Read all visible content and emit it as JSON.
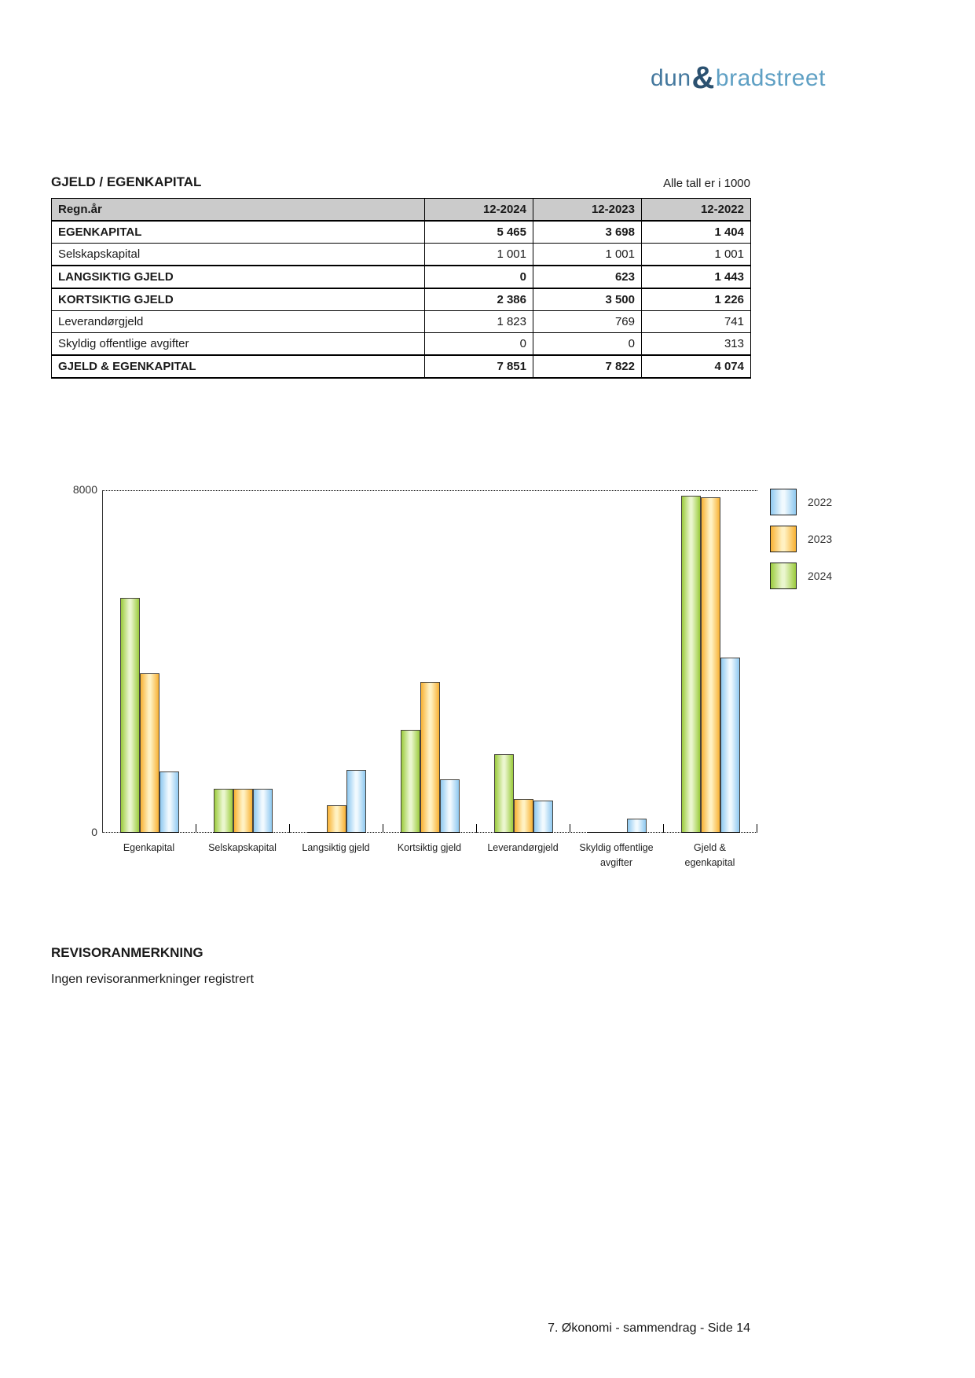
{
  "logo": {
    "part1": "dun",
    "amp": "&",
    "part2": "bradstreet"
  },
  "section": {
    "title": "GJELD / EGENKAPITAL",
    "note": "Alle tall er i 1000"
  },
  "table": {
    "header": [
      "Regn.år",
      "12-2024",
      "12-2023",
      "12-2022"
    ],
    "rows": [
      {
        "label": "EGENKAPITAL",
        "bold": true,
        "values": [
          "5 465",
          "3 698",
          "1 404"
        ]
      },
      {
        "label": "Selskapskapital",
        "bold": false,
        "values": [
          "1 001",
          "1 001",
          "1 001"
        ]
      },
      {
        "label": "LANGSIKTIG GJELD",
        "bold": true,
        "values": [
          "0",
          "623",
          "1 443"
        ]
      },
      {
        "label": "KORTSIKTIG GJELD",
        "bold": true,
        "values": [
          "2 386",
          "3 500",
          "1 226"
        ]
      },
      {
        "label": "Leverandørgjeld",
        "bold": false,
        "values": [
          "1 823",
          "769",
          "741"
        ]
      },
      {
        "label": "Skyldig offentlige avgifter",
        "bold": false,
        "values": [
          "0",
          "0",
          "313"
        ]
      },
      {
        "label": "GJELD & EGENKAPITAL",
        "bold": true,
        "values": [
          "7 851",
          "7 822",
          "4 074"
        ]
      }
    ]
  },
  "chart_data": {
    "type": "bar",
    "categories": [
      "Egenkapital",
      "Selskapskapital",
      "Langsiktig gjeld",
      "Kortsiktig gjeld",
      "Leverandørgjeld",
      "Skyldig offentlige avgifter",
      "Gjeld & egenkapital"
    ],
    "series": [
      {
        "name": "2024",
        "color": "#9BCB3D",
        "light": "#EAF6CE",
        "values": [
          5465,
          1001,
          0,
          2386,
          1823,
          0,
          7851
        ]
      },
      {
        "name": "2023",
        "color": "#F8B133",
        "light": "#FFF1C2",
        "values": [
          3698,
          1001,
          623,
          3500,
          769,
          0,
          7822
        ]
      },
      {
        "name": "2022",
        "color": "#8FC9F0",
        "light": "#F0F9FE",
        "values": [
          1404,
          1001,
          1443,
          1226,
          741,
          313,
          4074
        ]
      }
    ],
    "legend": [
      {
        "label": "2022",
        "color": "#8FC9F0",
        "light": "#F0F9FE"
      },
      {
        "label": "2023",
        "color": "#F8B133",
        "light": "#FFF1C2"
      },
      {
        "label": "2024",
        "color": "#9BCB3D",
        "light": "#EAF6CE"
      }
    ],
    "ylim": [
      0,
      8000
    ],
    "yticks": [
      0,
      8000
    ],
    "grid": "top-dotted",
    "legend_position": "right"
  },
  "revisor": {
    "heading": "REVISORANMERKNING",
    "text": "Ingen revisoranmerkninger registrert"
  },
  "page": {
    "footer": "7. Økonomi - sammendrag - Side 14"
  }
}
